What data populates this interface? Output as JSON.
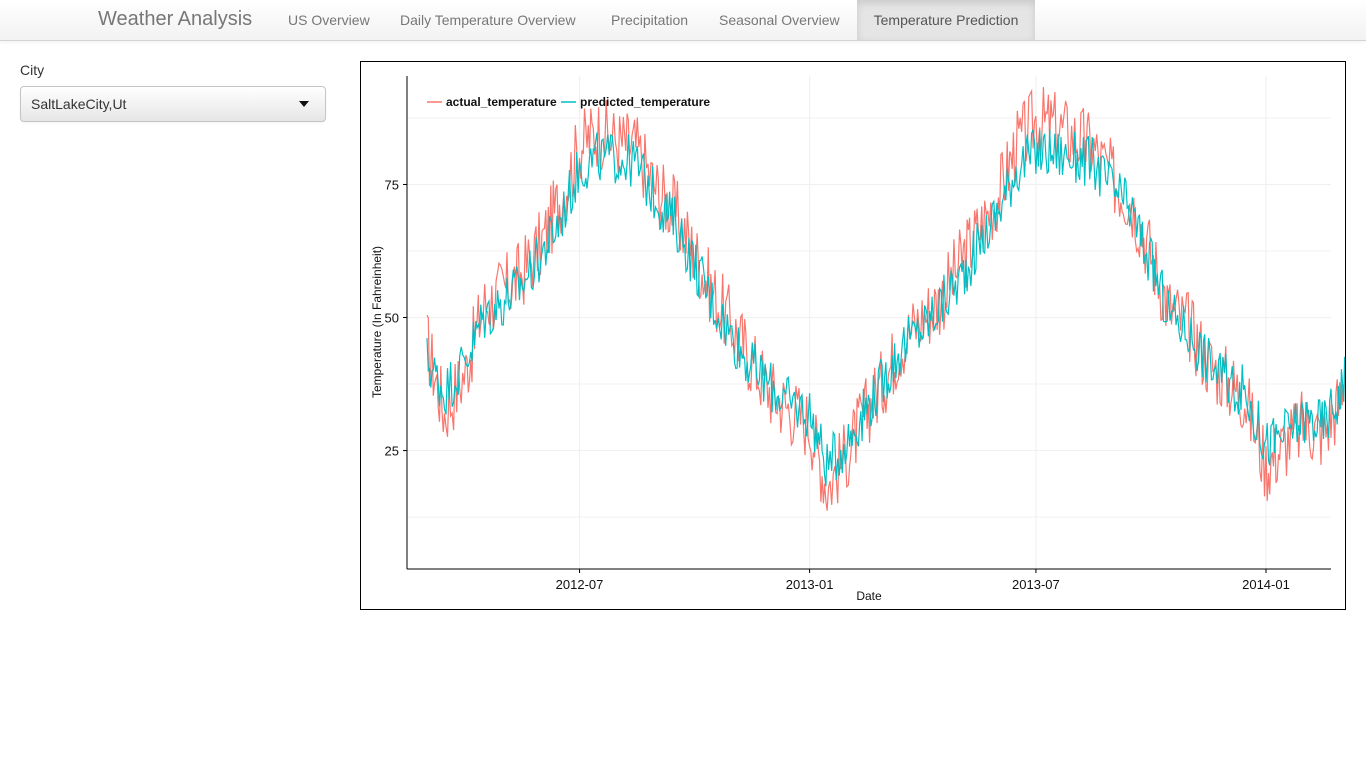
{
  "app": {
    "title": "Weather Analysis",
    "tabs": [
      {
        "label": "US Overview",
        "active": false
      },
      {
        "label": "Daily Temperature Overview",
        "active": false
      },
      {
        "label": "Precipitation",
        "active": false
      },
      {
        "label": "Seasonal Overview",
        "active": false
      },
      {
        "label": "Temperature Prediction",
        "active": true
      }
    ]
  },
  "sidebar": {
    "city_label": "City",
    "city_value": "SaltLakeCity,Ut"
  },
  "colors": {
    "actual": "#F8766D",
    "predicted": "#00BFC4",
    "grid": "#f1f1f1"
  },
  "chart_data": {
    "type": "line",
    "title": "",
    "xlabel": "Date",
    "ylabel": "Temperature (In Fahreinheit)",
    "x_range": [
      "2012-03-01",
      "2014-03-10"
    ],
    "ylim": [
      5,
      92
    ],
    "x_ticks": [
      "2012-07",
      "2013-01",
      "2013-07",
      "2014-01"
    ],
    "y_ticks": [
      25,
      50,
      75
    ],
    "grid": true,
    "legend_position": "top-left",
    "series_names": [
      "actual_temperature",
      "predicted_temperature"
    ],
    "x": [
      "2012-03-01",
      "2012-03-15",
      "2012-04-01",
      "2012-04-15",
      "2012-05-01",
      "2012-05-15",
      "2012-06-01",
      "2012-06-15",
      "2012-07-01",
      "2012-07-15",
      "2012-08-01",
      "2012-08-15",
      "2012-09-01",
      "2012-09-15",
      "2012-10-01",
      "2012-10-15",
      "2012-11-01",
      "2012-11-15",
      "2012-12-01",
      "2012-12-15",
      "2013-01-01",
      "2013-01-15",
      "2013-02-01",
      "2013-02-15",
      "2013-03-01",
      "2013-03-15",
      "2013-04-01",
      "2013-04-15",
      "2013-05-01",
      "2013-05-15",
      "2013-06-01",
      "2013-06-15",
      "2013-07-01",
      "2013-07-15",
      "2013-08-01",
      "2013-08-15",
      "2013-09-01",
      "2013-09-15",
      "2013-10-01",
      "2013-10-15",
      "2013-11-01",
      "2013-11-15",
      "2013-12-01",
      "2013-12-15",
      "2014-01-01",
      "2014-01-15",
      "2014-02-01",
      "2014-02-15",
      "2014-03-01",
      "2014-03-10"
    ],
    "series": [
      {
        "name": "actual_temperature",
        "values": [
          45,
          32,
          40,
          52,
          55,
          58,
          64,
          72,
          82,
          85,
          83,
          82,
          74,
          70,
          62,
          55,
          48,
          42,
          36,
          33,
          30,
          18,
          25,
          32,
          38,
          45,
          50,
          53,
          60,
          66,
          73,
          82,
          87,
          86,
          84,
          82,
          76,
          72,
          62,
          52,
          48,
          42,
          38,
          35,
          22,
          26,
          30,
          28,
          34,
          51
        ]
      },
      {
        "name": "predicted_temperature",
        "values": [
          42,
          36,
          42,
          50,
          53,
          56,
          62,
          68,
          78,
          80,
          80,
          79,
          72,
          68,
          60,
          53,
          46,
          41,
          37,
          34,
          32,
          22,
          27,
          33,
          38,
          44,
          48,
          52,
          57,
          63,
          70,
          78,
          81,
          81,
          80,
          79,
          74,
          70,
          60,
          51,
          47,
          42,
          38,
          36,
          26,
          28,
          31,
          30,
          35,
          46
        ]
      }
    ]
  }
}
